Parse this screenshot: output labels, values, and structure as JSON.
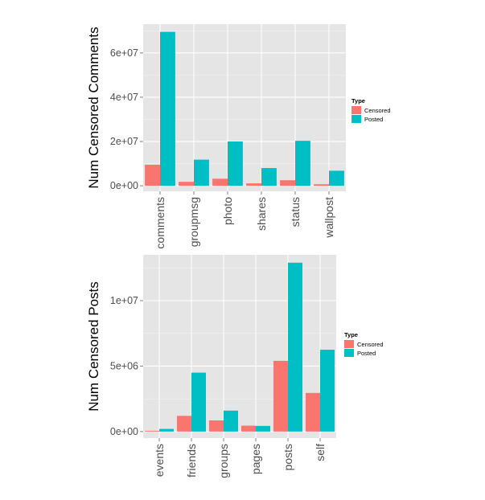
{
  "chart_data": [
    {
      "type": "bar",
      "ylabel": "Num Censored Comments",
      "categories": [
        "comments",
        "groupmsg",
        "photo",
        "shares",
        "status",
        "wallpost"
      ],
      "series": [
        {
          "name": "Censored",
          "values": [
            9500000,
            1800000,
            3200000,
            1100000,
            2500000,
            700000
          ]
        },
        {
          "name": "Posted",
          "values": [
            69500000,
            11800000,
            20000000,
            8000000,
            20300000,
            6800000
          ]
        }
      ],
      "yticks": [
        0,
        20000000,
        40000000,
        60000000
      ],
      "ytick_labels": [
        "0e+00",
        "2e+07",
        "4e+07",
        "6e+07"
      ],
      "ylim": [
        -2500000,
        73000000
      ],
      "grid": true,
      "legend": {
        "title": "Type",
        "placement": "right",
        "items": [
          "Censored",
          "Posted"
        ]
      },
      "colors": {
        "Censored": "#F8766D",
        "Posted": "#00BFC4"
      }
    },
    {
      "type": "bar",
      "ylabel": "Num Censored Posts",
      "categories": [
        "events",
        "friends",
        "groups",
        "pages",
        "posts",
        "self"
      ],
      "series": [
        {
          "name": "Censored",
          "values": [
            60000,
            1200000,
            850000,
            450000,
            5400000,
            2950000
          ]
        },
        {
          "name": "Posted",
          "values": [
            200000,
            4500000,
            1600000,
            430000,
            12900000,
            6250000
          ]
        }
      ],
      "yticks": [
        0,
        5000000,
        10000000
      ],
      "ytick_labels": [
        "0e+00",
        "5e+06",
        "1e+07"
      ],
      "ylim": [
        -500000,
        13500000
      ],
      "grid": true,
      "legend": {
        "title": "Type",
        "placement": "right",
        "items": [
          "Censored",
          "Posted"
        ]
      },
      "colors": {
        "Censored": "#F8766D",
        "Posted": "#00BFC4"
      }
    }
  ]
}
